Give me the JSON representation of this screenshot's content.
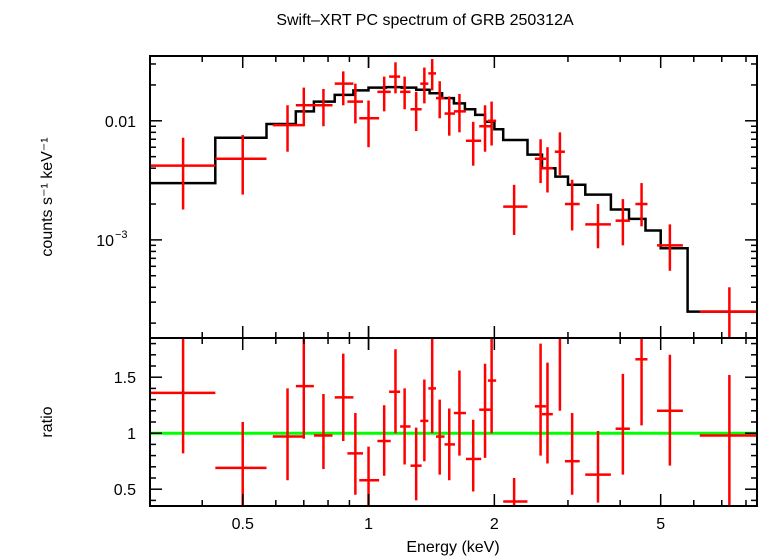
{
  "chart_data": [
    {
      "type": "scatter",
      "title": "Swift–XRT PC spectrum of GRB 250312A",
      "ylabel": "counts s⁻¹ keV⁻¹",
      "xlabel": "",
      "xscale": "log",
      "yscale": "log",
      "xlim": [
        0.3,
        8.5
      ],
      "ylim": [
        0.00015,
        0.035
      ],
      "yticks": [
        {
          "value": 0.01,
          "label": "0.01"
        },
        {
          "value": 0.001,
          "base": "10",
          "exp": "−3"
        }
      ],
      "colors": {
        "data": "#ff0000",
        "model": "#000000"
      },
      "data_series": {
        "name": "",
        "points": [
          {
            "x": 0.36,
            "xlo": 0.3,
            "xhi": 0.43,
            "y": 0.0042,
            "ylo": 0.0018,
            "yhi": 0.0072
          },
          {
            "x": 0.5,
            "xlo": 0.43,
            "xhi": 0.57,
            "y": 0.0048,
            "ylo": 0.0024,
            "yhi": 0.0076
          },
          {
            "x": 0.64,
            "xlo": 0.59,
            "xhi": 0.7,
            "y": 0.0092,
            "ylo": 0.0055,
            "yhi": 0.0135
          },
          {
            "x": 0.7,
            "xlo": 0.67,
            "xhi": 0.74,
            "y": 0.0135,
            "ylo": 0.009,
            "yhi": 0.019
          },
          {
            "x": 0.78,
            "xlo": 0.74,
            "xhi": 0.82,
            "y": 0.0135,
            "ylo": 0.009,
            "yhi": 0.0185
          },
          {
            "x": 0.87,
            "xlo": 0.83,
            "xhi": 0.92,
            "y": 0.0205,
            "ylo": 0.0135,
            "yhi": 0.026
          },
          {
            "x": 0.93,
            "xlo": 0.89,
            "xhi": 0.97,
            "y": 0.0145,
            "ylo": 0.0095,
            "yhi": 0.0205
          },
          {
            "x": 1.0,
            "xlo": 0.95,
            "xhi": 1.06,
            "y": 0.0105,
            "ylo": 0.006,
            "yhi": 0.0148
          },
          {
            "x": 1.09,
            "xlo": 1.05,
            "xhi": 1.13,
            "y": 0.0175,
            "ylo": 0.012,
            "yhi": 0.0235
          },
          {
            "x": 1.16,
            "xlo": 1.12,
            "xhi": 1.19,
            "y": 0.0235,
            "ylo": 0.017,
            "yhi": 0.031
          },
          {
            "x": 1.22,
            "xlo": 1.19,
            "xhi": 1.26,
            "y": 0.0175,
            "ylo": 0.0125,
            "yhi": 0.0235
          },
          {
            "x": 1.3,
            "xlo": 1.26,
            "xhi": 1.34,
            "y": 0.0125,
            "ylo": 0.0082,
            "yhi": 0.0175
          },
          {
            "x": 1.36,
            "xlo": 1.33,
            "xhi": 1.39,
            "y": 0.0205,
            "ylo": 0.014,
            "yhi": 0.028
          },
          {
            "x": 1.42,
            "xlo": 1.39,
            "xhi": 1.45,
            "y": 0.025,
            "ylo": 0.018,
            "yhi": 0.033
          },
          {
            "x": 1.48,
            "xlo": 1.45,
            "xhi": 1.52,
            "y": 0.0155,
            "ylo": 0.0105,
            "yhi": 0.0215
          },
          {
            "x": 1.56,
            "xlo": 1.52,
            "xhi": 1.61,
            "y": 0.0115,
            "ylo": 0.0075,
            "yhi": 0.016
          },
          {
            "x": 1.65,
            "xlo": 1.6,
            "xhi": 1.71,
            "y": 0.012,
            "ylo": 0.008,
            "yhi": 0.0168
          },
          {
            "x": 1.78,
            "xlo": 1.71,
            "xhi": 1.86,
            "y": 0.0068,
            "ylo": 0.0042,
            "yhi": 0.0098
          },
          {
            "x": 1.9,
            "xlo": 1.84,
            "xhi": 1.97,
            "y": 0.009,
            "ylo": 0.0055,
            "yhi": 0.0135
          },
          {
            "x": 1.97,
            "xlo": 1.93,
            "xhi": 2.02,
            "y": 0.01,
            "ylo": 0.0062,
            "yhi": 0.0145
          },
          {
            "x": 2.23,
            "xlo": 2.1,
            "xhi": 2.4,
            "y": 0.0019,
            "ylo": 0.0011,
            "yhi": 0.0029
          },
          {
            "x": 2.58,
            "xlo": 2.5,
            "xhi": 2.66,
            "y": 0.0048,
            "ylo": 0.003,
            "yhi": 0.007
          },
          {
            "x": 2.68,
            "xlo": 2.6,
            "xhi": 2.76,
            "y": 0.004,
            "ylo": 0.0025,
            "yhi": 0.006
          },
          {
            "x": 2.87,
            "xlo": 2.79,
            "xhi": 2.95,
            "y": 0.0055,
            "ylo": 0.0035,
            "yhi": 0.008
          },
          {
            "x": 3.07,
            "xlo": 2.95,
            "xhi": 3.2,
            "y": 0.002,
            "ylo": 0.0012,
            "yhi": 0.0032
          },
          {
            "x": 3.54,
            "xlo": 3.3,
            "xhi": 3.8,
            "y": 0.00135,
            "ylo": 0.00085,
            "yhi": 0.002
          },
          {
            "x": 4.06,
            "xlo": 3.9,
            "xhi": 4.22,
            "y": 0.00145,
            "ylo": 0.0009,
            "yhi": 0.0022
          },
          {
            "x": 4.5,
            "xlo": 4.35,
            "xhi": 4.65,
            "y": 0.002,
            "ylo": 0.0013,
            "yhi": 0.003
          },
          {
            "x": 5.26,
            "xlo": 4.9,
            "xhi": 5.65,
            "y": 0.0009,
            "ylo": 0.00055,
            "yhi": 0.00135
          },
          {
            "x": 7.3,
            "xlo": 6.2,
            "xhi": 8.5,
            "y": 0.00025,
            "ylo": 0.00015,
            "yhi": 0.0004
          }
        ]
      },
      "model_series": {
        "name": "",
        "edges": [
          0.3,
          0.43,
          0.57,
          0.67,
          0.74,
          0.83,
          0.92,
          1.0,
          1.1,
          1.2,
          1.3,
          1.4,
          1.5,
          1.6,
          1.7,
          1.8,
          1.9,
          2.0,
          2.1,
          2.4,
          2.6,
          2.8,
          3.0,
          3.3,
          3.8,
          4.2,
          4.6,
          5.0,
          5.8,
          8.5
        ],
        "values": [
          0.003,
          0.0072,
          0.0094,
          0.012,
          0.0145,
          0.0165,
          0.018,
          0.019,
          0.0192,
          0.019,
          0.0182,
          0.017,
          0.0155,
          0.014,
          0.0125,
          0.0112,
          0.0098,
          0.0085,
          0.0069,
          0.0052,
          0.004,
          0.0034,
          0.0029,
          0.0024,
          0.0018,
          0.0015,
          0.0012,
          0.00085,
          0.00025
        ]
      }
    },
    {
      "type": "scatter",
      "title": "",
      "ylabel": "ratio",
      "xlabel": "Energy (keV)",
      "xscale": "log",
      "xlim": [
        0.3,
        8.5
      ],
      "ylim": [
        0.35,
        1.85
      ],
      "yticks": [
        0.5,
        1,
        1.5
      ],
      "ytick_labels": [
        "0.5",
        "1",
        "1.5"
      ],
      "xticks": [
        0.5,
        1,
        2,
        5
      ],
      "xtick_labels": [
        "0.5",
        "1",
        "2",
        "5"
      ],
      "reference_line": {
        "y": 1,
        "color": "#00ff00"
      },
      "colors": {
        "data": "#ff0000"
      },
      "points": [
        {
          "x": 0.36,
          "xlo": 0.3,
          "xhi": 0.43,
          "y": 1.36,
          "ylo": 0.82,
          "yhi": 1.9
        },
        {
          "x": 0.5,
          "xlo": 0.43,
          "xhi": 0.57,
          "y": 0.69,
          "ylo": 0.32,
          "yhi": 1.1
        },
        {
          "x": 0.64,
          "xlo": 0.59,
          "xhi": 0.7,
          "y": 0.97,
          "ylo": 0.58,
          "yhi": 1.4
        },
        {
          "x": 0.7,
          "xlo": 0.67,
          "xhi": 0.74,
          "y": 1.42,
          "ylo": 0.95,
          "yhi": 1.9
        },
        {
          "x": 0.78,
          "xlo": 0.74,
          "xhi": 0.82,
          "y": 0.98,
          "ylo": 0.68,
          "yhi": 1.35
        },
        {
          "x": 0.87,
          "xlo": 0.83,
          "xhi": 0.92,
          "y": 1.32,
          "ylo": 0.93,
          "yhi": 1.71
        },
        {
          "x": 0.93,
          "xlo": 0.89,
          "xhi": 0.97,
          "y": 0.82,
          "ylo": 0.45,
          "yhi": 1.18
        },
        {
          "x": 1.0,
          "xlo": 0.95,
          "xhi": 1.06,
          "y": 0.58,
          "ylo": 0.3,
          "yhi": 0.88
        },
        {
          "x": 1.09,
          "xlo": 1.05,
          "xhi": 1.13,
          "y": 0.93,
          "ylo": 0.62,
          "yhi": 1.25
        },
        {
          "x": 1.16,
          "xlo": 1.12,
          "xhi": 1.19,
          "y": 1.37,
          "ylo": 1.0,
          "yhi": 1.75
        },
        {
          "x": 1.22,
          "xlo": 1.19,
          "xhi": 1.26,
          "y": 1.06,
          "ylo": 0.72,
          "yhi": 1.4
        },
        {
          "x": 1.3,
          "xlo": 1.26,
          "xhi": 1.34,
          "y": 0.71,
          "ylo": 0.4,
          "yhi": 1.05
        },
        {
          "x": 1.36,
          "xlo": 1.33,
          "xhi": 1.39,
          "y": 1.11,
          "ylo": 0.75,
          "yhi": 1.48
        },
        {
          "x": 1.42,
          "xlo": 1.39,
          "xhi": 1.45,
          "y": 1.4,
          "ylo": 1.0,
          "yhi": 1.85
        },
        {
          "x": 1.48,
          "xlo": 1.45,
          "xhi": 1.52,
          "y": 0.97,
          "ylo": 0.63,
          "yhi": 1.3
        },
        {
          "x": 1.56,
          "xlo": 1.52,
          "xhi": 1.61,
          "y": 0.9,
          "ylo": 0.58,
          "yhi": 1.22
        },
        {
          "x": 1.65,
          "xlo": 1.6,
          "xhi": 1.71,
          "y": 1.18,
          "ylo": 0.8,
          "yhi": 1.56
        },
        {
          "x": 1.78,
          "xlo": 1.71,
          "xhi": 1.86,
          "y": 0.77,
          "ylo": 0.48,
          "yhi": 1.12
        },
        {
          "x": 1.9,
          "xlo": 1.84,
          "xhi": 1.97,
          "y": 1.21,
          "ylo": 0.78,
          "yhi": 1.62
        },
        {
          "x": 1.97,
          "xlo": 1.93,
          "xhi": 2.02,
          "y": 1.47,
          "ylo": 1.0,
          "yhi": 1.88
        },
        {
          "x": 2.23,
          "xlo": 2.1,
          "xhi": 2.4,
          "y": 0.39,
          "ylo": 0.22,
          "yhi": 0.6
        },
        {
          "x": 2.58,
          "xlo": 2.5,
          "xhi": 2.66,
          "y": 1.24,
          "ylo": 0.8,
          "yhi": 1.8
        },
        {
          "x": 2.68,
          "xlo": 2.6,
          "xhi": 2.76,
          "y": 1.17,
          "ylo": 0.73,
          "yhi": 1.63
        },
        {
          "x": 2.87,
          "xlo": 2.79,
          "xhi": 2.95,
          "y": 1.86,
          "ylo": 1.2,
          "yhi": 2.3
        },
        {
          "x": 3.07,
          "xlo": 2.95,
          "xhi": 3.2,
          "y": 0.75,
          "ylo": 0.45,
          "yhi": 1.18
        },
        {
          "x": 3.54,
          "xlo": 3.3,
          "xhi": 3.8,
          "y": 0.63,
          "ylo": 0.38,
          "yhi": 1.02
        },
        {
          "x": 4.06,
          "xlo": 3.9,
          "xhi": 4.22,
          "y": 1.04,
          "ylo": 0.63,
          "yhi": 1.53
        },
        {
          "x": 4.5,
          "xlo": 4.35,
          "xhi": 4.65,
          "y": 1.66,
          "ylo": 1.07,
          "yhi": 2.3
        },
        {
          "x": 5.26,
          "xlo": 4.9,
          "xhi": 5.65,
          "y": 1.2,
          "ylo": 0.71,
          "yhi": 1.7
        },
        {
          "x": 7.3,
          "xlo": 6.2,
          "xhi": 8.5,
          "y": 0.98,
          "ylo": 0.35,
          "yhi": 1.52
        }
      ]
    }
  ]
}
